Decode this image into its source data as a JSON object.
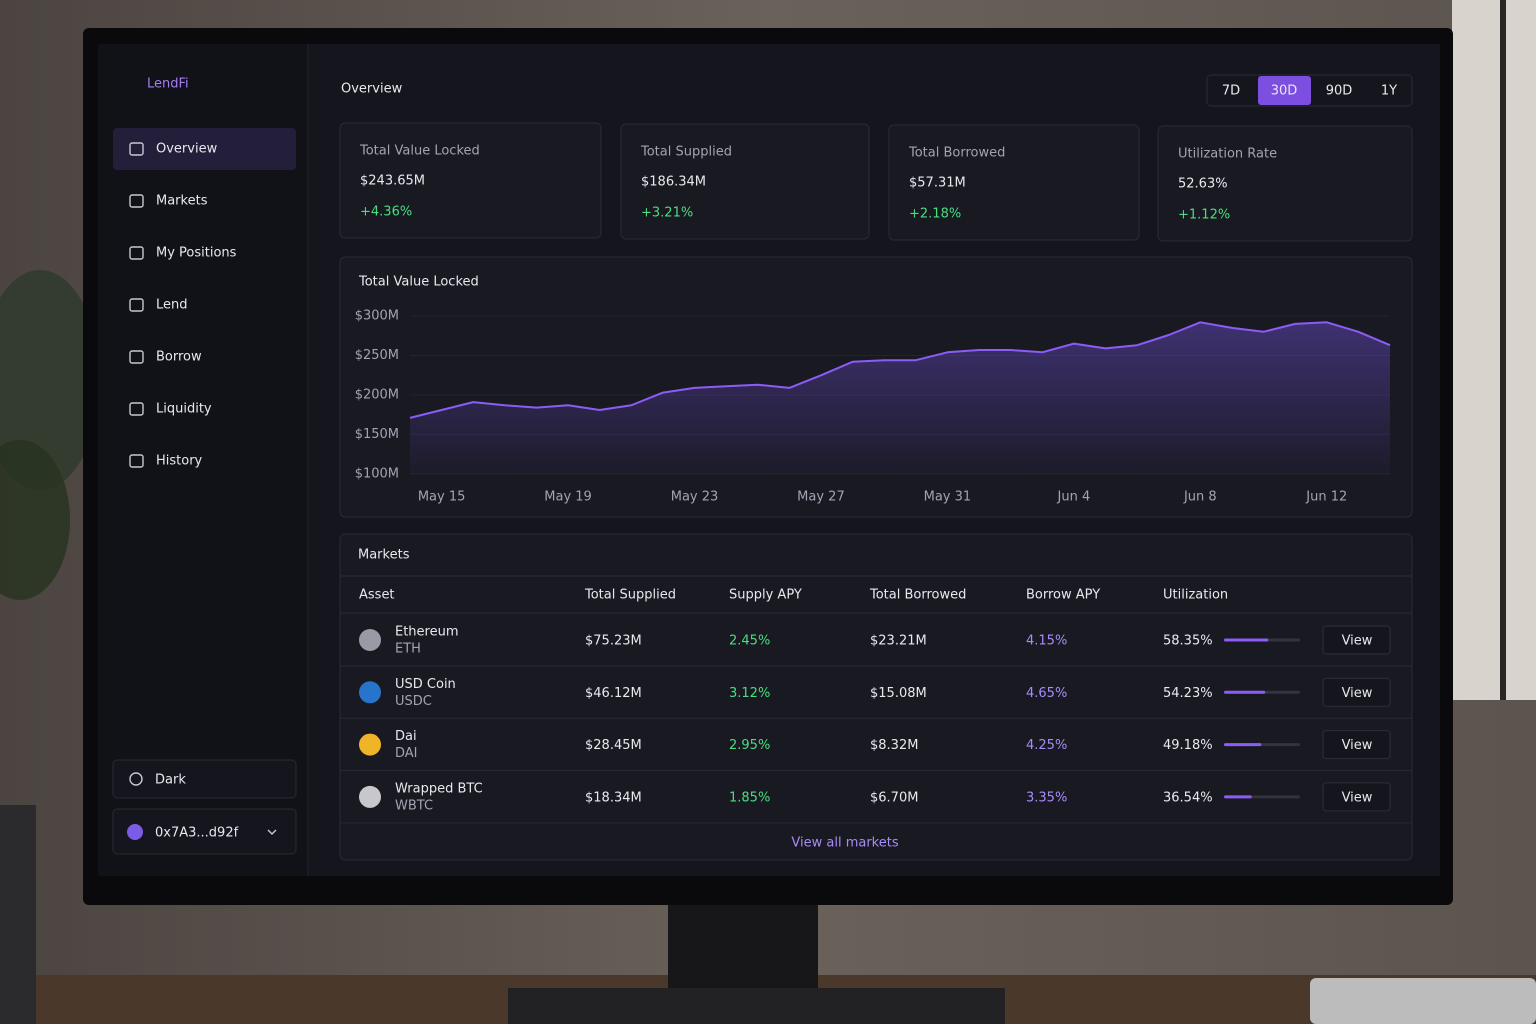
{
  "brand": "LendFi",
  "nav": [
    "Overview",
    "Markets",
    "My Positions",
    "Lend",
    "Borrow",
    "Liquidity",
    "History"
  ],
  "theme": "Dark",
  "wallet": "0x7A3...d92f",
  "page_title": "Overview",
  "ranges": [
    "7D",
    "30D",
    "90D",
    "1Y"
  ],
  "stats": [
    {
      "label": "Total Value Locked",
      "value": "$243.65M",
      "change": "+4.36%"
    },
    {
      "label": "Total Supplied",
      "value": "$186.34M",
      "change": "+3.21%"
    },
    {
      "label": "Total Borrowed",
      "value": "$57.31M",
      "change": "+2.18%"
    },
    {
      "label": "Utilization Rate",
      "value": "52.63%",
      "change": "+1.12%"
    }
  ],
  "chart_data": {
    "type": "area",
    "title": "Total Value Locked",
    "categories": [
      null,
      "May 15",
      null,
      null,
      null,
      "May 19",
      null,
      null,
      null,
      "May 23",
      null,
      null,
      null,
      "May 27",
      null,
      null,
      null,
      "May 31",
      null,
      null,
      null,
      "Jun 4",
      null,
      null,
      null,
      "Jun 8",
      null,
      null,
      null,
      "Jun 12",
      null,
      null
    ],
    "values": [
      171,
      181,
      191,
      187,
      184,
      187,
      181,
      187,
      203,
      209,
      211,
      213,
      209,
      225,
      242,
      244,
      244,
      254,
      257,
      257,
      254,
      265,
      259,
      263,
      276,
      292,
      285,
      280,
      290,
      292,
      280,
      263
    ],
    "color": "#8b5cf6",
    "ylim": [
      100,
      300
    ],
    "yticks": [
      {
        "value": 100,
        "label": "$100M"
      },
      {
        "value": 150,
        "label": "$150M"
      },
      {
        "value": 200,
        "label": "$200M"
      },
      {
        "value": 250,
        "label": "$250M"
      },
      {
        "value": 300,
        "label": "$300M"
      }
    ],
    "grid": true
  },
  "markets": {
    "title": "Markets",
    "columns": [
      "Asset",
      "Total Supplied",
      "Supply APY",
      "Total Borrowed",
      "Borrow APY",
      "Utilization"
    ],
    "rows": [
      {
        "asset": "Ethereum",
        "symbol": "ETH",
        "supplied": "$75.23M",
        "supply_apy": "2.45%",
        "borrowed": "$23.21M",
        "borrow_apy": "4.15%",
        "utilization": {
          "value": 58.35,
          "label": "58.35%"
        },
        "action": "View"
      },
      {
        "asset": "USD Coin",
        "symbol": "USDC",
        "supplied": "$46.12M",
        "supply_apy": "3.12%",
        "borrowed": "$15.08M",
        "borrow_apy": "4.65%",
        "utilization": {
          "value": 54.23,
          "label": "54.23%"
        },
        "action": "View"
      },
      {
        "asset": "Dai",
        "symbol": "DAI",
        "supplied": "$28.45M",
        "supply_apy": "2.95%",
        "borrowed": "$8.32M",
        "borrow_apy": "4.25%",
        "utilization": {
          "value": 49.18,
          "label": "49.18%"
        },
        "action": "View"
      },
      {
        "asset": "Wrapped BTC",
        "symbol": "WBTC",
        "supplied": "$18.34M",
        "supply_apy": "1.85%",
        "borrowed": "$6.70M",
        "borrow_apy": "3.35%",
        "utilization": {
          "value": 36.54,
          "label": "36.54%"
        },
        "action": "View"
      }
    ],
    "footer": "View all markets"
  }
}
